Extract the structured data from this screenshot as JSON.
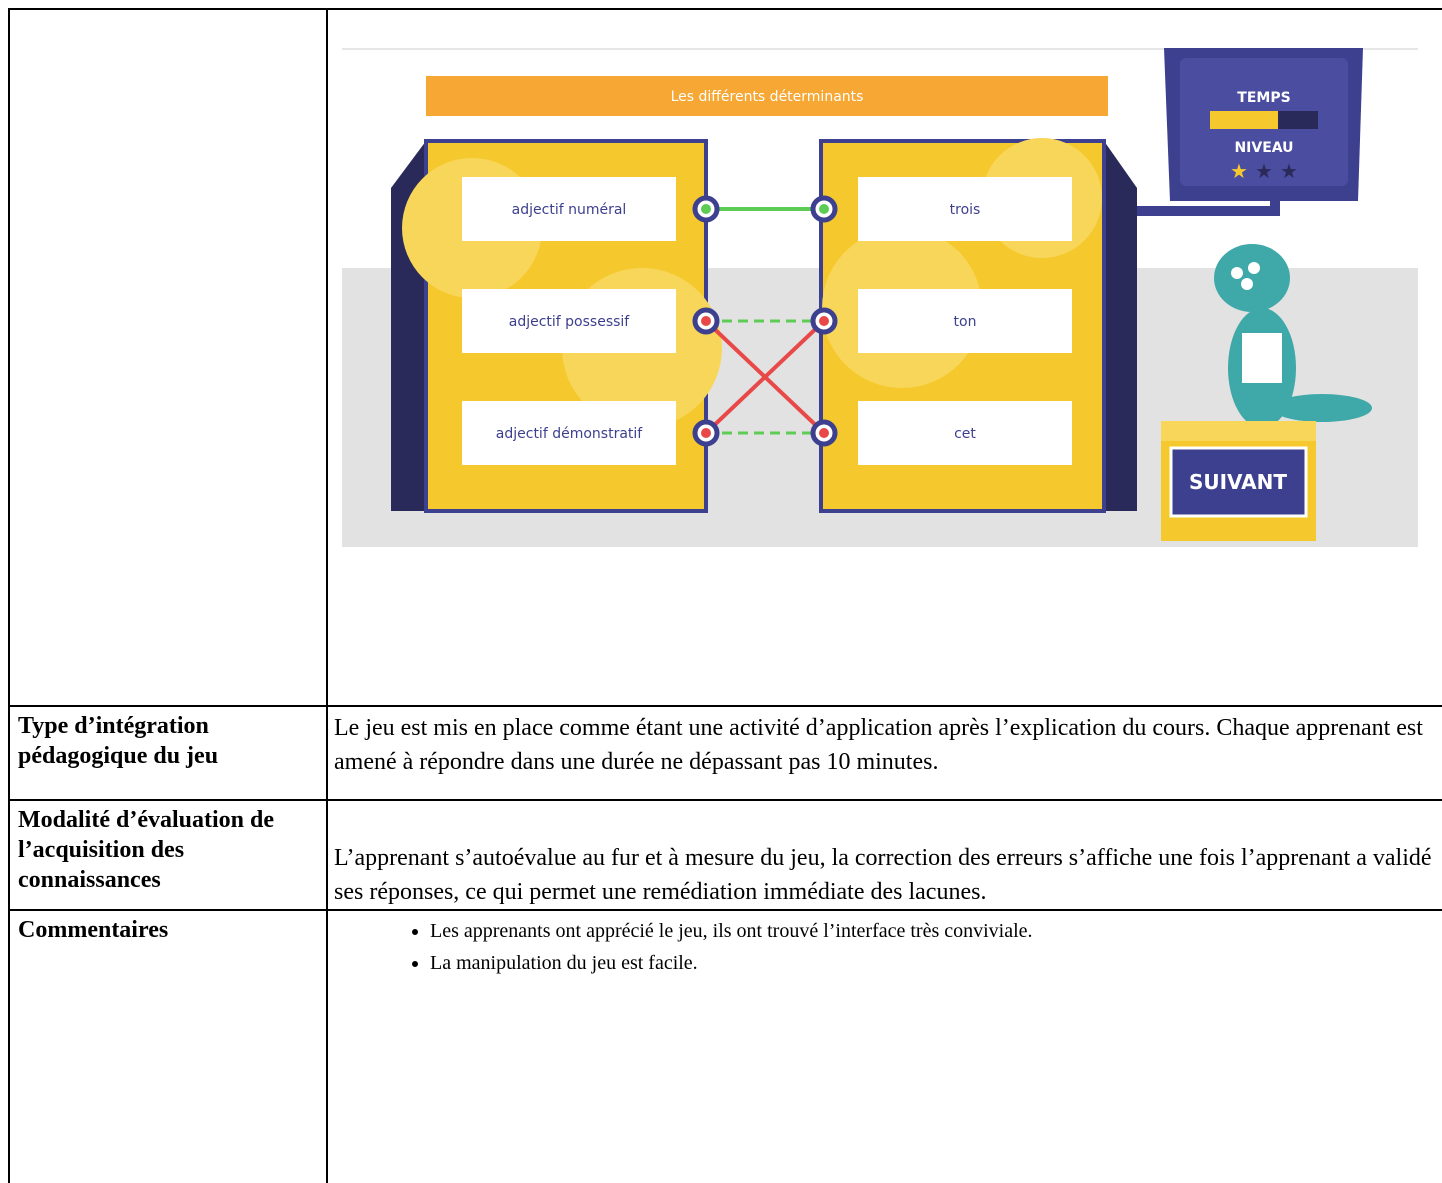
{
  "game": {
    "title": "Les différents déterminants",
    "time_label": "TEMPS",
    "level_label": "NIVEAU",
    "left": [
      "adjectif numéral",
      "adjectif possessif",
      "adjectif démonstratif"
    ],
    "right": [
      "trois",
      "ton",
      "cet"
    ],
    "button": "SUIVANT"
  },
  "table": {
    "rows": [
      {
        "label": "Type d’intégration pédagogique du jeu",
        "text": "Le jeu est mis en place comme étant une activité d’application après l’explication du cours. Chaque apprenant est amené à répondre dans une durée ne dépassant pas 10 minutes."
      },
      {
        "label": "Modalité d’évaluation de l’acquisition des connaissances",
        "text": "L’apprenant s’autoévalue au fur et à mesure du jeu, la correction des erreurs s’affiche une fois l’apprenant a validé ses réponses, ce qui permet une remédiation immédiate des lacunes."
      },
      {
        "label": "Commentaires",
        "items": [
          "Les apprenants ont apprécié le jeu, ils ont trouvé l’interface très conviviale.",
          "La manipulation du jeu est facile."
        ]
      }
    ]
  }
}
